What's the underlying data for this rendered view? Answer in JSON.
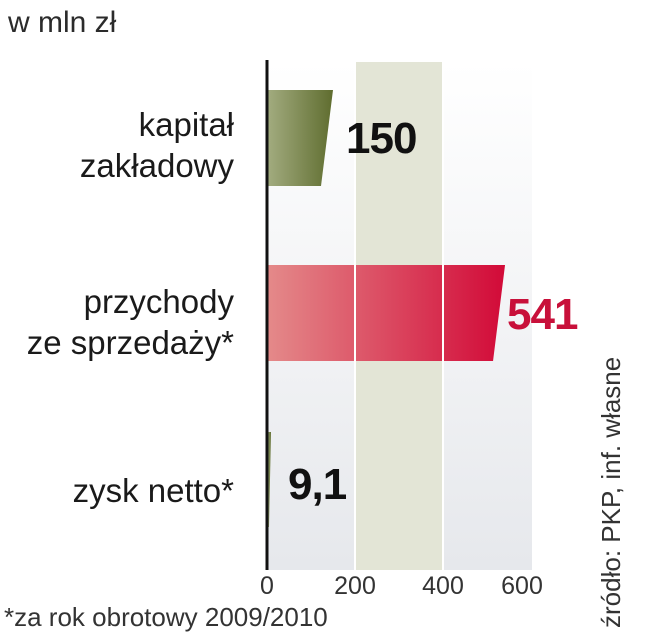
{
  "chart_data": {
    "type": "bar",
    "orientation": "horizontal",
    "unit_label": "w mln zł",
    "categories": [
      [
        "kapitał",
        "zakładowy"
      ],
      [
        "przychody",
        "ze sprzedaży*"
      ],
      [
        "zysk netto*"
      ]
    ],
    "values": [
      150,
      541,
      9.1
    ],
    "value_labels": [
      "150",
      "541",
      "9,1"
    ],
    "xlim": [
      0,
      600
    ],
    "x_ticks": [
      "0",
      "200",
      "400",
      "600"
    ],
    "grid": "vertical at 200 and 400, shaded band between 200 and 400",
    "footnote": "*za rok obrotowy 2009/2010",
    "source": "źródło: PKP, inf. własne",
    "colors": {
      "bar_1": "#6b7a3a",
      "bar_2": "#d4143c",
      "value_2": "#c8103a",
      "value_default": "#111111",
      "band": "#e3e5d6"
    }
  }
}
